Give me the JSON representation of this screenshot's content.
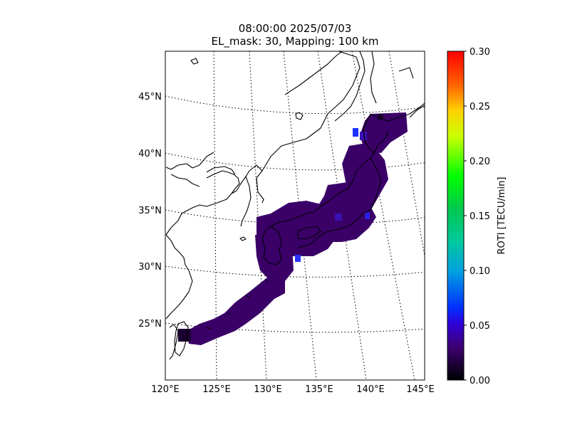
{
  "title": {
    "line1": "08:00:00 2025/07/03",
    "line2": "EL_mask: 30, Mapping: 100 km"
  },
  "map": {
    "region": "Japan",
    "lon_range": [
      120,
      145
    ],
    "lat_range": [
      20,
      49
    ],
    "lon_ticks": [
      "120°E",
      "125°E",
      "130°E",
      "135°E",
      "140°E",
      "145°E"
    ],
    "lat_ticks": [
      "45°N",
      "40°N",
      "35°N",
      "30°N",
      "25°N"
    ],
    "graticule": "dotted",
    "colors": {
      "background_color": "#7a7a7a",
      "coastline": "#000000",
      "ocean": "#ffffff"
    }
  },
  "colorbar": {
    "label": "ROTI [TECU/min]",
    "min": 0.0,
    "max": 0.3,
    "ticks": [
      "0.00",
      "0.05",
      "0.10",
      "0.15",
      "0.20",
      "0.25",
      "0.30"
    ],
    "colormap": "nipy_spectral",
    "colors": [
      "#000000",
      "#3d0070",
      "#3200ff",
      "#00a0d0",
      "#00d050",
      "#00ff00",
      "#d0ff00",
      "#ffb000",
      "#ff2000",
      "#ff0000"
    ]
  },
  "chart_data": {
    "type": "heatmap",
    "title": "08:00:00 2025/07/03",
    "subtitle": "EL_mask: 30, Mapping: 100 km",
    "value_label": "ROTI [TECU/min]",
    "value_range": [
      0.0,
      0.3
    ],
    "dominant_value": 0.03,
    "notes_values": [
      {
        "lon": 138.5,
        "lat": 42.0,
        "roti": 0.07
      },
      {
        "lon": 139.5,
        "lat": 35.0,
        "roti": 0.06
      },
      {
        "lon": 133.0,
        "lat": 30.5,
        "roti": 0.06
      },
      {
        "lon": 122.0,
        "lat": 24.0,
        "roti": 0.0
      }
    ]
  }
}
